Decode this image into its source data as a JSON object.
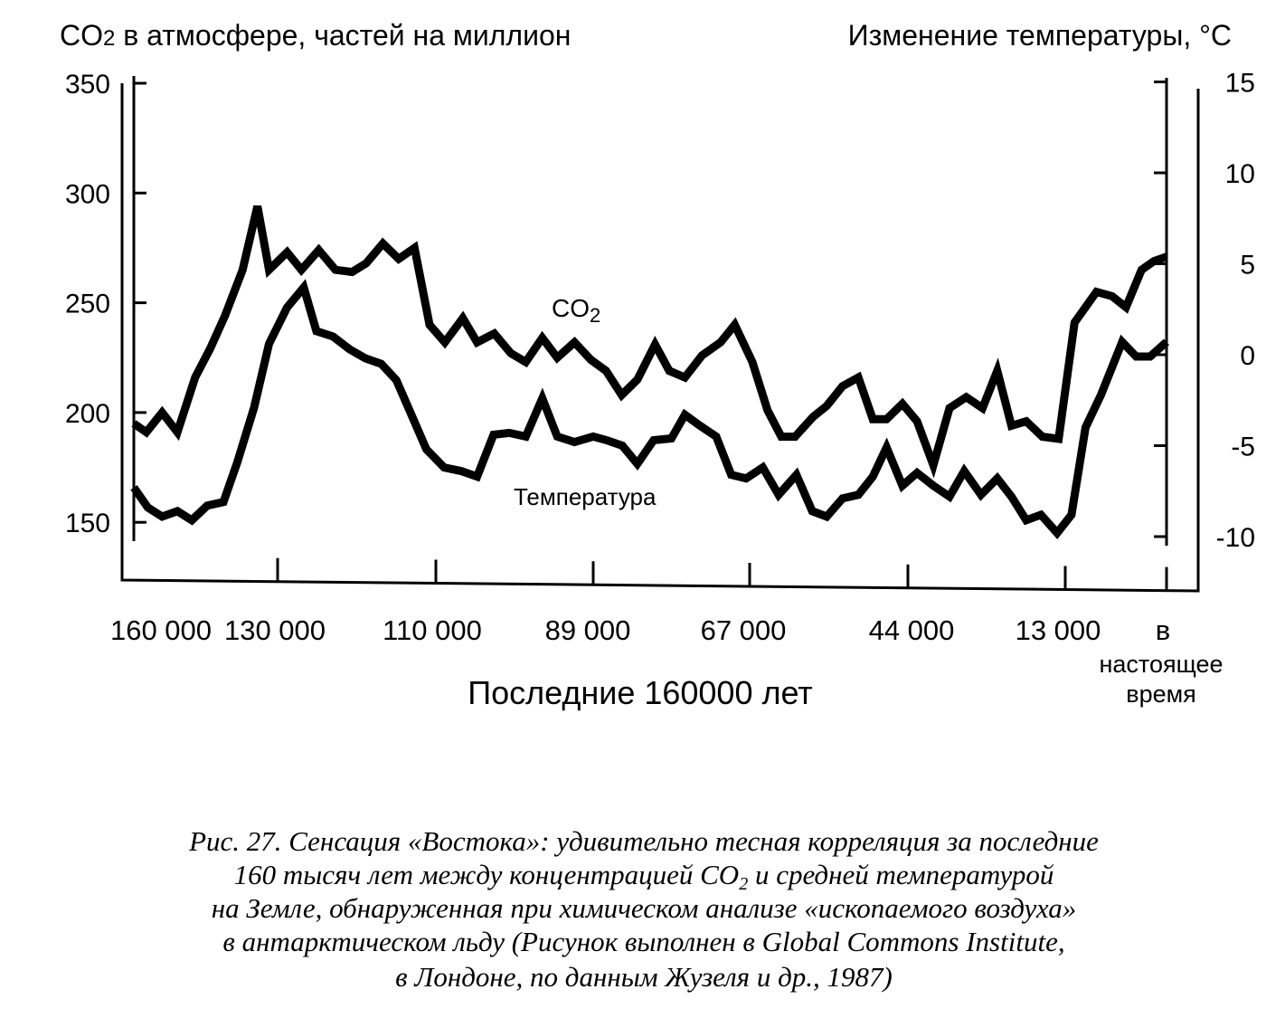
{
  "chart_data": {
    "type": "line",
    "title_left_prefix": "CO",
    "title_left_sub": "2",
    "title_left_suffix": " в атмосфере, частей на миллион",
    "title_right": "Изменение температуры, °С",
    "xlabel": "Последние 160000 лет",
    "x_unit": "years ago",
    "x_ticks": [
      {
        "value": 160000,
        "label": "160 000"
      },
      {
        "value": 130000,
        "label": "130 000"
      },
      {
        "value": 110000,
        "label": "110 000"
      },
      {
        "value": 89000,
        "label": "89 000"
      },
      {
        "value": 67000,
        "label": "67 000"
      },
      {
        "value": 44000,
        "label": "44 000"
      },
      {
        "value": 13000,
        "label": "13 000"
      },
      {
        "value": 0,
        "label": "в",
        "label_line2": "настоящее",
        "label_line3": "время"
      }
    ],
    "y_left": {
      "label": "CO2, ppm",
      "range": [
        130,
        350
      ],
      "ticks": [
        "350",
        "300",
        "250",
        "200",
        "150"
      ],
      "tick_values": [
        350,
        300,
        250,
        200,
        150
      ]
    },
    "y_right": {
      "label": "°C",
      "range": [
        -12.5,
        15
      ],
      "ticks": [
        "15",
        "10",
        "5",
        "0",
        "-5",
        "-10"
      ],
      "tick_values": [
        15,
        10,
        5,
        0,
        -5,
        -10
      ]
    },
    "series": [
      {
        "name": "CO2",
        "label_prefix": "CO",
        "label_sub": "2",
        "axis": "left",
        "color": "#000000",
        "x": [
          160000,
          157400,
          154100,
          150900,
          147200,
          144100,
          141000,
          137300,
          134200,
          131800,
          128800,
          127000,
          124800,
          122700,
          120600,
          118800,
          116700,
          114700,
          112700,
          110800,
          108800,
          106400,
          104500,
          102200,
          100000,
          98000,
          95800,
          93800,
          91500,
          89300,
          87200,
          85000,
          82800,
          80300,
          78300,
          76100,
          73700,
          71100,
          69100,
          66600,
          64400,
          62400,
          60400,
          57800,
          55800,
          53500,
          51200,
          49100,
          47100,
          44800,
          42200,
          39000,
          35800,
          32500,
          29300,
          26400,
          23600,
          20700,
          17500,
          14300,
          11800,
          9000,
          7000,
          5200,
          3200,
          1600,
          0
        ],
        "y": [
          195,
          191,
          200,
          191,
          216,
          229,
          244,
          265,
          294,
          265,
          273,
          265,
          274,
          265,
          264,
          268,
          277,
          270,
          275,
          240,
          232,
          243,
          232,
          236,
          227,
          223,
          234,
          225,
          232,
          224,
          219,
          208,
          215,
          231,
          219,
          216,
          226,
          232,
          240,
          223,
          201,
          189,
          189,
          198,
          203,
          212,
          216,
          197,
          197,
          204,
          196,
          176,
          202,
          207,
          202,
          219,
          194,
          196,
          189,
          188,
          241,
          255,
          253,
          248,
          265,
          269,
          271
        ]
      },
      {
        "name": "Температура",
        "axis": "right",
        "color": "#000000",
        "x": [
          160000,
          157100,
          154100,
          150900,
          147900,
          144700,
          141300,
          138400,
          134900,
          131800,
          128800,
          126700,
          125100,
          123000,
          120900,
          118900,
          116900,
          115000,
          113000,
          111200,
          108900,
          106600,
          104500,
          102300,
          100200,
          98000,
          95800,
          93800,
          91500,
          89000,
          87100,
          84900,
          82800,
          80500,
          78000,
          76100,
          74000,
          71700,
          69600,
          67500,
          65100,
          62800,
          60200,
          57900,
          55800,
          53500,
          51200,
          49100,
          47100,
          44800,
          42200,
          39000,
          35800,
          32900,
          29600,
          26400,
          23600,
          20700,
          17800,
          14600,
          12200,
          10400,
          8400,
          5700,
          3900,
          2100,
          0
        ],
        "y": [
          -7.3,
          -8.4,
          -8.9,
          -8.6,
          -9.1,
          -8.3,
          -8.1,
          -5.9,
          -2.9,
          0.6,
          2.6,
          3.7,
          1.3,
          1.0,
          0.3,
          -0.2,
          -0.5,
          -1.4,
          -3.4,
          -5.2,
          -6.2,
          -6.4,
          -6.7,
          -4.4,
          -4.3,
          -4.5,
          -2.4,
          -4.5,
          -4.8,
          -4.5,
          -4.7,
          -5.0,
          -6.0,
          -4.7,
          -4.6,
          -3.3,
          -3.9,
          -4.5,
          -6.6,
          -6.8,
          -6.2,
          -7.7,
          -6.6,
          -8.6,
          -8.9,
          -7.9,
          -7.7,
          -6.7,
          -5.1,
          -7.2,
          -6.5,
          -7.2,
          -7.8,
          -6.4,
          -7.7,
          -6.8,
          -7.8,
          -9.1,
          -8.8,
          -9.8,
          -8.8,
          -4.0,
          -2.2,
          0.7,
          -0.1,
          -0.1,
          0.7
        ]
      }
    ],
    "grid": false,
    "legend": "inline labels"
  },
  "caption": {
    "line1": "Рис. 27. Сенсация «Востока»: удивительно тесная корреляция за последние",
    "line2_prefix": "160 тысяч лет между концентрацией CO",
    "line2_sub": "2",
    "line2_suffix": " и средней температурой",
    "line3": "на Земле, обнаруженная при химическом анализе «ископаемого воздуха»",
    "line4": "в антарктическом льду (Рисунок выполнен в Global Commons Institute,",
    "line5": "в Лондоне, по данным Жузеля и др., 1987)"
  }
}
